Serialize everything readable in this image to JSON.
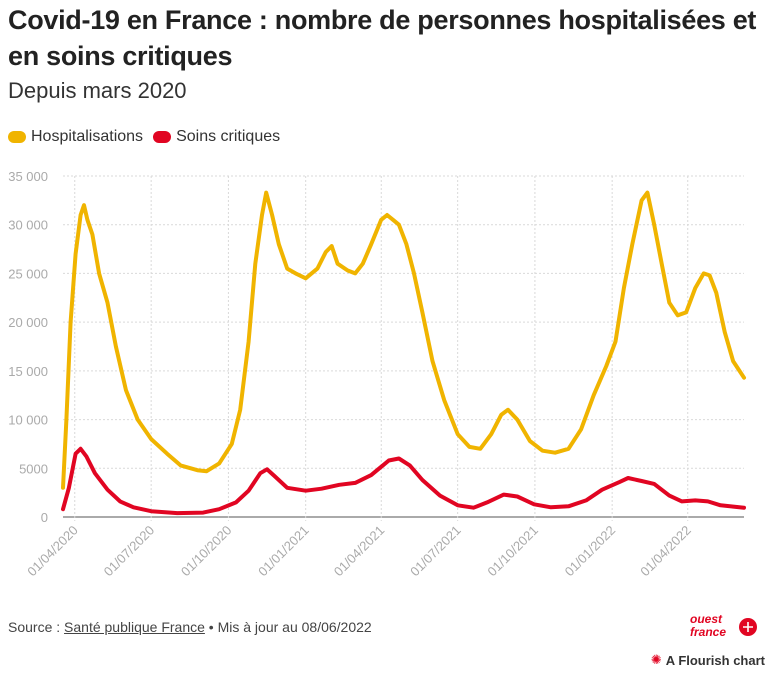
{
  "header": {
    "title": "Covid-19 en France : nombre de personnes hospitalisées et en soins critiques",
    "subtitle": "Depuis mars 2020"
  },
  "legend": {
    "items": [
      {
        "label": "Hospitalisations",
        "color": "#f0b400"
      },
      {
        "label": "Soins critiques",
        "color": "#e10522"
      }
    ]
  },
  "footer": {
    "source_prefix": "Source : ",
    "source_link": "Santé publique France",
    "update_text": " • Mis à jour au 08/06/2022",
    "logo_text_1": "ouest",
    "logo_text_2": "france",
    "flourish_label": "A Flourish chart"
  },
  "chart_data": {
    "type": "line",
    "title": "Covid-19 en France : nombre de personnes hospitalisées et en soins critiques",
    "subtitle": "Depuis mars 2020",
    "x_range": [
      "2020-03-18",
      "2022-06-07"
    ],
    "ylim": [
      0,
      35000
    ],
    "y_ticks": [
      0,
      5000,
      10000,
      15000,
      20000,
      25000,
      30000,
      35000
    ],
    "y_tick_labels": [
      "0",
      "5000",
      "10 000",
      "15 000",
      "20 000",
      "25 000",
      "30 000",
      "35 000"
    ],
    "x_ticks": [
      "2020-04-01",
      "2020-07-01",
      "2020-10-01",
      "2021-01-01",
      "2021-04-01",
      "2021-07-01",
      "2021-10-01",
      "2022-01-01",
      "2022-04-01"
    ],
    "x_tick_labels": [
      "01/04/2020",
      "01/07/2020",
      "01/10/2020",
      "01/01/2021",
      "01/04/2021",
      "01/07/2021",
      "01/10/2021",
      "01/01/2022",
      "01/04/2022"
    ],
    "grid": true,
    "series": [
      {
        "name": "Hospitalisations",
        "color": "#f0b400",
        "points": [
          [
            "2020-03-18",
            3000
          ],
          [
            "2020-03-22",
            10000
          ],
          [
            "2020-03-27",
            20000
          ],
          [
            "2020-04-02",
            27000
          ],
          [
            "2020-04-08",
            31000
          ],
          [
            "2020-04-12",
            32000
          ],
          [
            "2020-04-16",
            30500
          ],
          [
            "2020-04-22",
            29000
          ],
          [
            "2020-04-30",
            25000
          ],
          [
            "2020-05-10",
            22000
          ],
          [
            "2020-05-20",
            17500
          ],
          [
            "2020-06-01",
            13000
          ],
          [
            "2020-06-15",
            10000
          ],
          [
            "2020-07-01",
            8000
          ],
          [
            "2020-07-20",
            6500
          ],
          [
            "2020-08-05",
            5300
          ],
          [
            "2020-08-25",
            4800
          ],
          [
            "2020-09-05",
            4700
          ],
          [
            "2020-09-20",
            5500
          ],
          [
            "2020-10-05",
            7500
          ],
          [
            "2020-10-15",
            11000
          ],
          [
            "2020-10-25",
            18000
          ],
          [
            "2020-11-02",
            26000
          ],
          [
            "2020-11-10",
            31000
          ],
          [
            "2020-11-15",
            33300
          ],
          [
            "2020-11-22",
            31000
          ],
          [
            "2020-11-30",
            28000
          ],
          [
            "2020-12-10",
            25500
          ],
          [
            "2020-12-20",
            25000
          ],
          [
            "2021-01-01",
            24500
          ],
          [
            "2021-01-15",
            25500
          ],
          [
            "2021-01-25",
            27200
          ],
          [
            "2021-02-01",
            27800
          ],
          [
            "2021-02-08",
            26000
          ],
          [
            "2021-02-20",
            25300
          ],
          [
            "2021-03-01",
            25000
          ],
          [
            "2021-03-10",
            26000
          ],
          [
            "2021-03-20",
            28000
          ],
          [
            "2021-04-01",
            30500
          ],
          [
            "2021-04-08",
            31000
          ],
          [
            "2021-04-15",
            30500
          ],
          [
            "2021-04-22",
            30000
          ],
          [
            "2021-05-01",
            28000
          ],
          [
            "2021-05-10",
            25000
          ],
          [
            "2021-05-20",
            21000
          ],
          [
            "2021-06-01",
            16000
          ],
          [
            "2021-06-15",
            12000
          ],
          [
            "2021-07-01",
            8500
          ],
          [
            "2021-07-15",
            7200
          ],
          [
            "2021-07-28",
            7000
          ],
          [
            "2021-08-10",
            8500
          ],
          [
            "2021-08-22",
            10500
          ],
          [
            "2021-08-30",
            11000
          ],
          [
            "2021-09-10",
            10000
          ],
          [
            "2021-09-25",
            7800
          ],
          [
            "2021-10-10",
            6800
          ],
          [
            "2021-10-25",
            6600
          ],
          [
            "2021-11-10",
            7000
          ],
          [
            "2021-11-25",
            9000
          ],
          [
            "2021-12-10",
            12500
          ],
          [
            "2021-12-25",
            15500
          ],
          [
            "2022-01-05",
            18000
          ],
          [
            "2022-01-15",
            23500
          ],
          [
            "2022-01-25",
            28000
          ],
          [
            "2022-02-05",
            32500
          ],
          [
            "2022-02-12",
            33300
          ],
          [
            "2022-02-20",
            30000
          ],
          [
            "2022-03-01",
            26000
          ],
          [
            "2022-03-10",
            22000
          ],
          [
            "2022-03-20",
            20700
          ],
          [
            "2022-03-30",
            21000
          ],
          [
            "2022-04-10",
            23500
          ],
          [
            "2022-04-20",
            25000
          ],
          [
            "2022-04-27",
            24800
          ],
          [
            "2022-05-05",
            23000
          ],
          [
            "2022-05-15",
            19000
          ],
          [
            "2022-05-25",
            16000
          ],
          [
            "2022-06-07",
            14300
          ]
        ]
      },
      {
        "name": "Soins critiques",
        "color": "#e10522",
        "points": [
          [
            "2020-03-18",
            800
          ],
          [
            "2020-03-25",
            3000
          ],
          [
            "2020-04-02",
            6500
          ],
          [
            "2020-04-08",
            7000
          ],
          [
            "2020-04-15",
            6200
          ],
          [
            "2020-04-25",
            4500
          ],
          [
            "2020-05-10",
            2800
          ],
          [
            "2020-05-25",
            1600
          ],
          [
            "2020-06-10",
            1000
          ],
          [
            "2020-07-01",
            600
          ],
          [
            "2020-08-01",
            400
          ],
          [
            "2020-09-01",
            450
          ],
          [
            "2020-09-20",
            800
          ],
          [
            "2020-10-10",
            1500
          ],
          [
            "2020-10-25",
            2700
          ],
          [
            "2020-11-08",
            4500
          ],
          [
            "2020-11-16",
            4900
          ],
          [
            "2020-11-25",
            4200
          ],
          [
            "2020-12-10",
            3000
          ],
          [
            "2021-01-01",
            2700
          ],
          [
            "2021-01-20",
            2900
          ],
          [
            "2021-02-10",
            3300
          ],
          [
            "2021-03-01",
            3500
          ],
          [
            "2021-03-20",
            4300
          ],
          [
            "2021-04-10",
            5800
          ],
          [
            "2021-04-22",
            6000
          ],
          [
            "2021-05-05",
            5300
          ],
          [
            "2021-05-20",
            3800
          ],
          [
            "2021-06-10",
            2200
          ],
          [
            "2021-07-01",
            1200
          ],
          [
            "2021-07-20",
            950
          ],
          [
            "2021-08-05",
            1500
          ],
          [
            "2021-08-25",
            2300
          ],
          [
            "2021-09-10",
            2100
          ],
          [
            "2021-09-30",
            1300
          ],
          [
            "2021-10-20",
            1000
          ],
          [
            "2021-11-10",
            1100
          ],
          [
            "2021-12-01",
            1700
          ],
          [
            "2021-12-20",
            2800
          ],
          [
            "2022-01-10",
            3600
          ],
          [
            "2022-01-20",
            4000
          ],
          [
            "2022-02-05",
            3700
          ],
          [
            "2022-02-20",
            3400
          ],
          [
            "2022-03-10",
            2200
          ],
          [
            "2022-03-25",
            1600
          ],
          [
            "2022-04-10",
            1700
          ],
          [
            "2022-04-25",
            1600
          ],
          [
            "2022-05-10",
            1200
          ],
          [
            "2022-06-07",
            950
          ]
        ]
      }
    ]
  }
}
